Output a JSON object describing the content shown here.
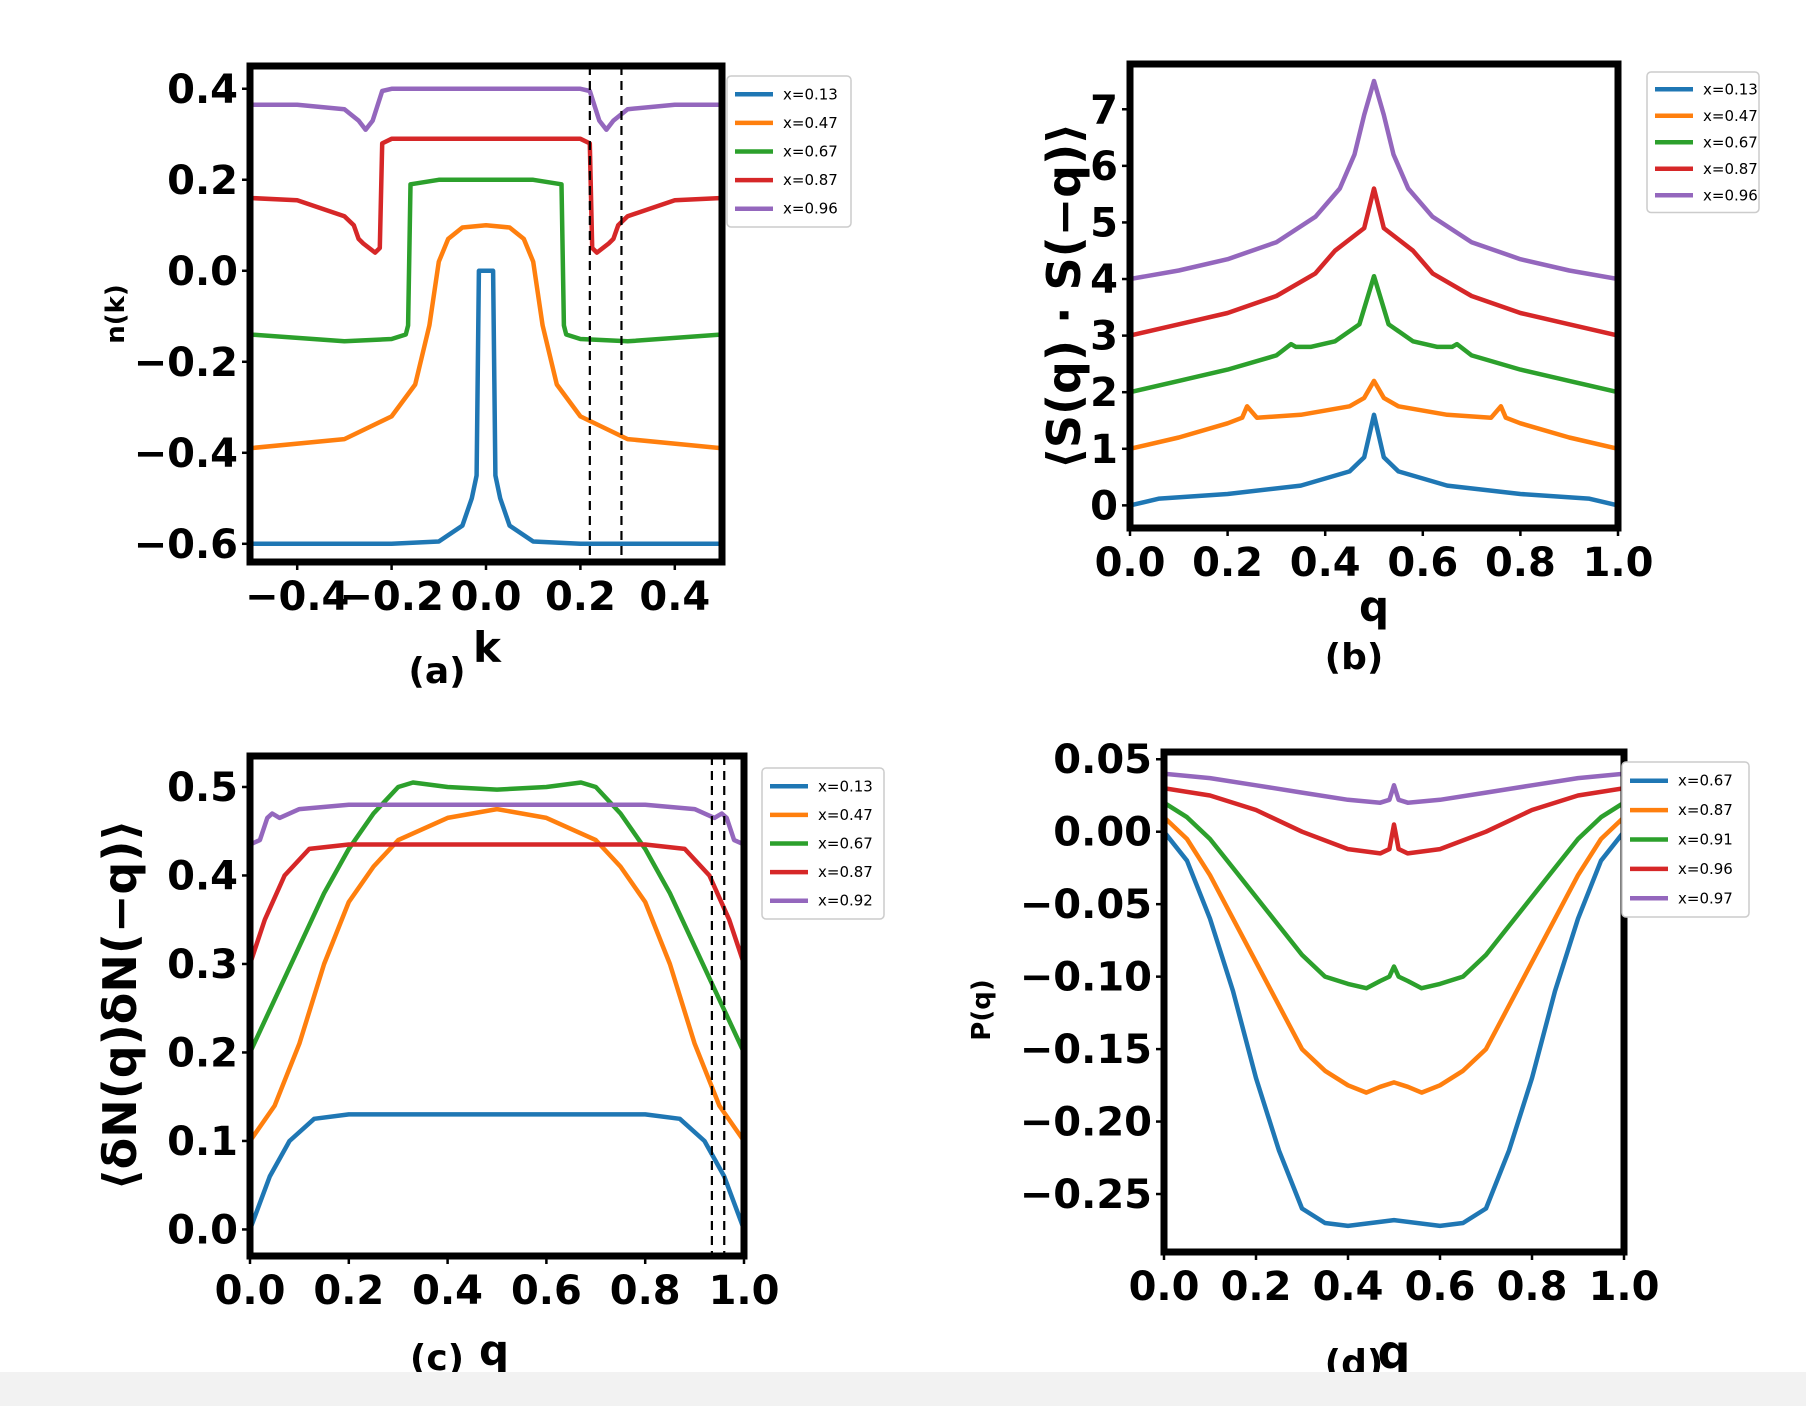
{
  "figure": {
    "colors": {
      "c0": "#1f77b4",
      "c1": "#ff7f0e",
      "c2": "#2ca02c",
      "c3": "#d62728",
      "c4": "#9467bd"
    }
  },
  "chart_data": [
    {
      "id": "a",
      "type": "line",
      "panel_label": "(a)",
      "xlabel": "k",
      "ylabel": "n(k)",
      "xlim": [
        -0.5,
        0.5
      ],
      "ylim": [
        -0.64,
        0.45
      ],
      "xticks": [
        -0.4,
        -0.2,
        0.0,
        0.2,
        0.4
      ],
      "xtick_labels": [
        "−0.4",
        "−0.2",
        "0.0",
        "0.2",
        "0.4"
      ],
      "yticks": [
        -0.6,
        -0.4,
        -0.2,
        0.0,
        0.2,
        0.4
      ],
      "ytick_labels": [
        "−0.6",
        "−0.4",
        "−0.2",
        "0.0",
        "0.2",
        "0.4"
      ],
      "vlines": [
        0.22,
        0.287
      ],
      "legend": [
        "x=0.13",
        "x=0.47",
        "x=0.67",
        "x=0.87",
        "x=0.96"
      ],
      "series": [
        {
          "name": "x=0.13",
          "x": [
            -0.5,
            -0.2,
            -0.1,
            -0.05,
            -0.03,
            -0.02,
            -0.015,
            0.0,
            0.015,
            0.02,
            0.03,
            0.05,
            0.1,
            0.2,
            0.5
          ],
          "y": [
            -0.6,
            -0.6,
            -0.595,
            -0.56,
            -0.5,
            -0.45,
            0.0,
            0.0,
            0.0,
            -0.45,
            -0.5,
            -0.56,
            -0.595,
            -0.6,
            -0.6
          ]
        },
        {
          "name": "x=0.47",
          "x": [
            -0.5,
            -0.3,
            -0.2,
            -0.15,
            -0.12,
            -0.1,
            -0.08,
            -0.05,
            0.0,
            0.05,
            0.08,
            0.1,
            0.12,
            0.15,
            0.2,
            0.3,
            0.5
          ],
          "y": [
            -0.39,
            -0.37,
            -0.32,
            -0.25,
            -0.12,
            0.02,
            0.07,
            0.095,
            0.1,
            0.095,
            0.07,
            0.02,
            -0.12,
            -0.25,
            -0.32,
            -0.37,
            -0.39
          ]
        },
        {
          "name": "x=0.67",
          "x": [
            -0.5,
            -0.3,
            -0.2,
            -0.17,
            -0.165,
            -0.16,
            -0.1,
            0.0,
            0.1,
            0.16,
            0.165,
            0.17,
            0.2,
            0.3,
            0.5
          ],
          "y": [
            -0.14,
            -0.155,
            -0.15,
            -0.14,
            -0.12,
            0.19,
            0.2,
            0.2,
            0.2,
            0.19,
            -0.12,
            -0.14,
            -0.15,
            -0.155,
            -0.14
          ]
        },
        {
          "name": "x=0.87",
          "x": [
            -0.5,
            -0.4,
            -0.3,
            -0.28,
            -0.27,
            -0.26,
            -0.235,
            -0.225,
            -0.22,
            -0.2,
            -0.1,
            0.0,
            0.1,
            0.2,
            0.22,
            0.225,
            0.235,
            0.26,
            0.27,
            0.28,
            0.3,
            0.4,
            0.5
          ],
          "y": [
            0.16,
            0.155,
            0.12,
            0.1,
            0.07,
            0.06,
            0.04,
            0.05,
            0.28,
            0.29,
            0.29,
            0.29,
            0.29,
            0.29,
            0.28,
            0.05,
            0.04,
            0.06,
            0.07,
            0.1,
            0.12,
            0.155,
            0.16
          ]
        },
        {
          "name": "x=0.96",
          "x": [
            -0.5,
            -0.4,
            -0.3,
            -0.27,
            -0.255,
            -0.24,
            -0.22,
            -0.2,
            0.0,
            0.2,
            0.22,
            0.24,
            0.255,
            0.27,
            0.3,
            0.4,
            0.5
          ],
          "y": [
            0.365,
            0.365,
            0.355,
            0.33,
            0.31,
            0.33,
            0.395,
            0.4,
            0.4,
            0.4,
            0.395,
            0.33,
            0.31,
            0.33,
            0.355,
            0.365,
            0.365
          ]
        }
      ]
    },
    {
      "id": "b",
      "type": "line",
      "panel_label": "(b)",
      "xlabel": "q",
      "ylabel": "⟨S(q) · S(−q)⟩",
      "xlim": [
        0,
        1
      ],
      "ylim": [
        -0.4,
        7.8
      ],
      "xticks": [
        0,
        0.2,
        0.4,
        0.6,
        0.8,
        1.0
      ],
      "xtick_labels": [
        "0.0",
        "0.2",
        "0.4",
        "0.6",
        "0.8",
        "1.0"
      ],
      "yticks": [
        0,
        1,
        2,
        3,
        4,
        5,
        6,
        7
      ],
      "ytick_labels": [
        "0",
        "1",
        "2",
        "3",
        "4",
        "5",
        "6",
        "7"
      ],
      "legend": [
        "x=0.13",
        "x=0.47",
        "x=0.67",
        "x=0.87",
        "x=0.96"
      ],
      "series": [
        {
          "name": "x=0.13",
          "x": [
            0,
            0.06,
            0.2,
            0.35,
            0.45,
            0.48,
            0.5,
            0.52,
            0.55,
            0.65,
            0.8,
            0.94,
            1.0
          ],
          "y": [
            0.0,
            0.12,
            0.2,
            0.35,
            0.6,
            0.85,
            1.6,
            0.85,
            0.6,
            0.35,
            0.2,
            0.12,
            0.0
          ]
        },
        {
          "name": "x=0.47",
          "x": [
            0,
            0.1,
            0.2,
            0.23,
            0.24,
            0.26,
            0.35,
            0.45,
            0.48,
            0.5,
            0.52,
            0.55,
            0.65,
            0.74,
            0.76,
            0.77,
            0.8,
            0.9,
            1.0
          ],
          "y": [
            1.0,
            1.2,
            1.45,
            1.55,
            1.75,
            1.55,
            1.6,
            1.75,
            1.9,
            2.2,
            1.9,
            1.75,
            1.6,
            1.55,
            1.75,
            1.55,
            1.45,
            1.2,
            1.0
          ]
        },
        {
          "name": "x=0.67",
          "x": [
            0,
            0.1,
            0.2,
            0.3,
            0.33,
            0.34,
            0.37,
            0.42,
            0.47,
            0.5,
            0.53,
            0.58,
            0.63,
            0.66,
            0.67,
            0.7,
            0.8,
            0.9,
            1.0
          ],
          "y": [
            2.0,
            2.2,
            2.4,
            2.65,
            2.85,
            2.8,
            2.8,
            2.9,
            3.2,
            4.05,
            3.2,
            2.9,
            2.8,
            2.8,
            2.85,
            2.65,
            2.4,
            2.2,
            2.0
          ]
        },
        {
          "name": "x=0.87",
          "x": [
            0,
            0.1,
            0.2,
            0.3,
            0.38,
            0.42,
            0.45,
            0.48,
            0.5,
            0.52,
            0.55,
            0.58,
            0.62,
            0.7,
            0.8,
            0.9,
            1.0
          ],
          "y": [
            3.0,
            3.2,
            3.4,
            3.7,
            4.1,
            4.5,
            4.7,
            4.9,
            5.6,
            4.9,
            4.7,
            4.5,
            4.1,
            3.7,
            3.4,
            3.2,
            3.0
          ]
        },
        {
          "name": "x=0.96",
          "x": [
            0,
            0.1,
            0.2,
            0.3,
            0.38,
            0.43,
            0.46,
            0.48,
            0.5,
            0.52,
            0.54,
            0.57,
            0.62,
            0.7,
            0.8,
            0.9,
            1.0
          ],
          "y": [
            4.0,
            4.15,
            4.35,
            4.65,
            5.1,
            5.6,
            6.2,
            6.9,
            7.5,
            6.9,
            6.2,
            5.6,
            5.1,
            4.65,
            4.35,
            4.15,
            4.0
          ]
        }
      ]
    },
    {
      "id": "c",
      "type": "line",
      "panel_label": "(c)",
      "xlabel": "q",
      "ylabel": "⟨δN(q)δN(−q)⟩",
      "xlim": [
        0,
        1
      ],
      "ylim": [
        -0.03,
        0.535
      ],
      "xticks": [
        0,
        0.2,
        0.4,
        0.6,
        0.8,
        1.0
      ],
      "xtick_labels": [
        "0.0",
        "0.2",
        "0.4",
        "0.6",
        "0.8",
        "1.0"
      ],
      "yticks": [
        0,
        0.1,
        0.2,
        0.3,
        0.4,
        0.5
      ],
      "ytick_labels": [
        "0.0",
        "0.1",
        "0.2",
        "0.3",
        "0.4",
        "0.5"
      ],
      "vlines": [
        0.935,
        0.96
      ],
      "legend": [
        "x=0.13",
        "x=0.47",
        "x=0.67",
        "x=0.87",
        "x=0.92"
      ],
      "series": [
        {
          "name": "x=0.13",
          "x": [
            0,
            0.04,
            0.08,
            0.13,
            0.2,
            0.5,
            0.8,
            0.87,
            0.92,
            0.96,
            1.0
          ],
          "y": [
            0.0,
            0.06,
            0.1,
            0.125,
            0.13,
            0.13,
            0.13,
            0.125,
            0.1,
            0.06,
            0.0
          ]
        },
        {
          "name": "x=0.47",
          "x": [
            0,
            0.05,
            0.1,
            0.15,
            0.2,
            0.25,
            0.3,
            0.4,
            0.5,
            0.6,
            0.7,
            0.75,
            0.8,
            0.85,
            0.9,
            0.95,
            1.0
          ],
          "y": [
            0.1,
            0.14,
            0.21,
            0.3,
            0.37,
            0.41,
            0.44,
            0.465,
            0.475,
            0.465,
            0.44,
            0.41,
            0.37,
            0.3,
            0.21,
            0.14,
            0.1
          ]
        },
        {
          "name": "x=0.67",
          "x": [
            0,
            0.05,
            0.1,
            0.15,
            0.2,
            0.25,
            0.3,
            0.33,
            0.4,
            0.5,
            0.6,
            0.67,
            0.7,
            0.75,
            0.8,
            0.85,
            0.9,
            0.95,
            1.0
          ],
          "y": [
            0.2,
            0.26,
            0.32,
            0.38,
            0.43,
            0.47,
            0.5,
            0.505,
            0.5,
            0.497,
            0.5,
            0.505,
            0.5,
            0.47,
            0.43,
            0.38,
            0.32,
            0.26,
            0.2
          ]
        },
        {
          "name": "x=0.87",
          "x": [
            0,
            0.03,
            0.07,
            0.12,
            0.2,
            0.5,
            0.8,
            0.88,
            0.93,
            0.97,
            1.0
          ],
          "y": [
            0.3,
            0.35,
            0.4,
            0.43,
            0.435,
            0.435,
            0.435,
            0.43,
            0.4,
            0.35,
            0.3
          ]
        },
        {
          "name": "x=0.92",
          "x": [
            0,
            0.02,
            0.035,
            0.045,
            0.06,
            0.1,
            0.2,
            0.5,
            0.8,
            0.9,
            0.94,
            0.955,
            0.965,
            0.98,
            1.0
          ],
          "y": [
            0.435,
            0.44,
            0.465,
            0.47,
            0.465,
            0.475,
            0.48,
            0.48,
            0.48,
            0.475,
            0.465,
            0.47,
            0.465,
            0.44,
            0.435
          ]
        }
      ]
    },
    {
      "id": "d",
      "type": "line",
      "panel_label": "(d)",
      "xlabel": "q",
      "ylabel": "P(q)",
      "xlim": [
        0,
        1
      ],
      "ylim": [
        -0.29,
        0.055
      ],
      "xticks": [
        0,
        0.2,
        0.4,
        0.6,
        0.8,
        1.0
      ],
      "xtick_labels": [
        "0.0",
        "0.2",
        "0.4",
        "0.6",
        "0.8",
        "1.0"
      ],
      "yticks": [
        -0.25,
        -0.2,
        -0.15,
        -0.1,
        -0.05,
        0.0,
        0.05
      ],
      "ytick_labels": [
        "−0.25",
        "−0.20",
        "−0.15",
        "−0.10",
        "−0.05",
        "0.00",
        "0.05"
      ],
      "legend": [
        "x=0.67",
        "x=0.87",
        "x=0.91",
        "x=0.96",
        "x=0.97"
      ],
      "series": [
        {
          "name": "x=0.67",
          "x": [
            0,
            0.05,
            0.1,
            0.15,
            0.2,
            0.25,
            0.3,
            0.35,
            0.4,
            0.5,
            0.6,
            0.65,
            0.7,
            0.75,
            0.8,
            0.85,
            0.9,
            0.95,
            1.0
          ],
          "y": [
            0.0,
            -0.02,
            -0.06,
            -0.11,
            -0.17,
            -0.22,
            -0.26,
            -0.27,
            -0.272,
            -0.268,
            -0.272,
            -0.27,
            -0.26,
            -0.22,
            -0.17,
            -0.11,
            -0.06,
            -0.02,
            0.0
          ]
        },
        {
          "name": "x=0.87",
          "x": [
            0,
            0.05,
            0.1,
            0.15,
            0.2,
            0.25,
            0.3,
            0.35,
            0.4,
            0.44,
            0.47,
            0.5,
            0.53,
            0.56,
            0.6,
            0.65,
            0.7,
            0.75,
            0.8,
            0.85,
            0.9,
            0.95,
            1.0
          ],
          "y": [
            0.01,
            -0.005,
            -0.03,
            -0.06,
            -0.09,
            -0.12,
            -0.15,
            -0.165,
            -0.175,
            -0.18,
            -0.176,
            -0.173,
            -0.176,
            -0.18,
            -0.175,
            -0.165,
            -0.15,
            -0.12,
            -0.09,
            -0.06,
            -0.03,
            -0.005,
            0.01
          ]
        },
        {
          "name": "x=0.91",
          "x": [
            0,
            0.05,
            0.1,
            0.15,
            0.2,
            0.25,
            0.3,
            0.35,
            0.4,
            0.44,
            0.47,
            0.49,
            0.5,
            0.51,
            0.53,
            0.56,
            0.6,
            0.65,
            0.7,
            0.75,
            0.8,
            0.85,
            0.9,
            0.95,
            1.0
          ],
          "y": [
            0.02,
            0.01,
            -0.005,
            -0.025,
            -0.045,
            -0.065,
            -0.085,
            -0.1,
            -0.105,
            -0.108,
            -0.103,
            -0.1,
            -0.093,
            -0.1,
            -0.103,
            -0.108,
            -0.105,
            -0.1,
            -0.085,
            -0.065,
            -0.045,
            -0.025,
            -0.005,
            0.01,
            0.02
          ]
        },
        {
          "name": "x=0.96",
          "x": [
            0,
            0.1,
            0.2,
            0.3,
            0.4,
            0.47,
            0.49,
            0.5,
            0.51,
            0.53,
            0.6,
            0.7,
            0.8,
            0.9,
            1.0
          ],
          "y": [
            0.03,
            0.025,
            0.015,
            0.0,
            -0.012,
            -0.015,
            -0.012,
            0.005,
            -0.012,
            -0.015,
            -0.012,
            0.0,
            0.015,
            0.025,
            0.03
          ]
        },
        {
          "name": "x=0.97",
          "x": [
            0,
            0.1,
            0.2,
            0.3,
            0.4,
            0.47,
            0.49,
            0.5,
            0.51,
            0.53,
            0.6,
            0.7,
            0.8,
            0.9,
            1.0
          ],
          "y": [
            0.04,
            0.037,
            0.032,
            0.027,
            0.022,
            0.02,
            0.022,
            0.032,
            0.022,
            0.02,
            0.022,
            0.027,
            0.032,
            0.037,
            0.04
          ]
        }
      ]
    }
  ]
}
